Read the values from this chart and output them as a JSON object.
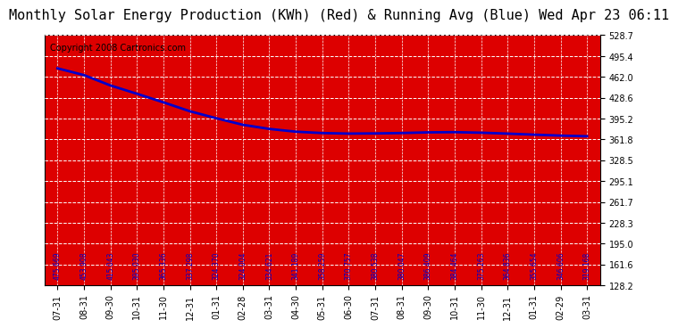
{
  "title": "Monthly Solar Energy Production (KWh) (Red) & Running Avg (Blue) Wed Apr 23 06:11",
  "copyright": "Copyright 2008 Cartronics.com",
  "categories": [
    "07-31",
    "08-31",
    "09-30",
    "10-31",
    "11-30",
    "12-31",
    "01-31",
    "02-28",
    "03-31",
    "04-30",
    "05-31",
    "06-30",
    "07-31",
    "08-31",
    "09-30",
    "10-31",
    "11-30",
    "12-31",
    "01-31",
    "02-29",
    "03-31"
  ],
  "bar_values": [
    475.669,
    453.908,
    415.043,
    395.03,
    365.336,
    337.298,
    324.37,
    324.004,
    334.621,
    341.189,
    358.259,
    370.757,
    380.538,
    380.047,
    386.409,
    384.464,
    375.263,
    364.836,
    355.654,
    346.606,
    319.168
  ],
  "running_avg": [
    475.669,
    464.789,
    448.207,
    434.913,
    421.197,
    406.881,
    395.665,
    385.215,
    378.587,
    374.173,
    371.953,
    371.099,
    371.368,
    372.004,
    373.071,
    373.43,
    372.505,
    371.05,
    369.399,
    367.874,
    366.83
  ],
  "bar_color": "#dd0000",
  "line_color": "#0000cc",
  "bg_color": "#dd0000",
  "plot_bg": "#dd0000",
  "grid_color": "white",
  "text_color": "#0000cc",
  "ylim_min": 128.2,
  "ylim_max": 528.7,
  "yticks": [
    128.2,
    161.6,
    195.0,
    228.3,
    261.7,
    295.1,
    328.5,
    361.8,
    395.2,
    428.6,
    462.0,
    495.4,
    528.7
  ],
  "title_fontsize": 11,
  "copyright_fontsize": 7
}
